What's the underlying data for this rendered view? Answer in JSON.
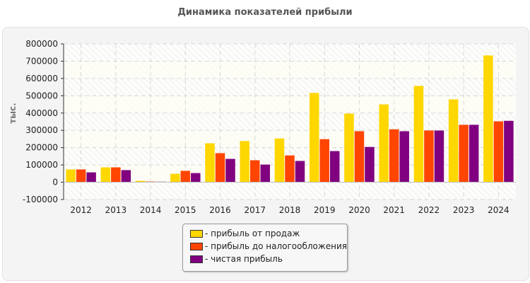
{
  "chart_data": {
    "type": "bar",
    "title": "Динамика показателей прибыли",
    "ylabel": "тыс.",
    "xlabel": "",
    "ylim": [
      -100000,
      800000
    ],
    "yticks": [
      "-100000",
      "0",
      "100000",
      "200000",
      "300000",
      "400000",
      "500000",
      "600000",
      "700000",
      "800000"
    ],
    "grid": true,
    "legend_position": "bottom",
    "categories": [
      "2012",
      "2013",
      "2014",
      "2015",
      "2016",
      "2017",
      "2018",
      "2019",
      "2020",
      "2021",
      "2022",
      "2023",
      "2024"
    ],
    "series": [
      {
        "name": "- прибыль от продаж",
        "color": "#FFD700",
        "values": [
          74000,
          86000,
          8000,
          49000,
          225000,
          238000,
          253000,
          516000,
          397000,
          450000,
          557000,
          479000,
          733000
        ]
      },
      {
        "name": "- прибыль до налогообложения",
        "color": "#FF4500",
        "values": [
          74000,
          86000,
          4000,
          66000,
          168000,
          127000,
          155000,
          249000,
          295000,
          306000,
          299000,
          332000,
          352000
        ]
      },
      {
        "name": "- чистая прибыль",
        "color": "#800080",
        "values": [
          57000,
          70000,
          3000,
          53000,
          135000,
          102000,
          123000,
          180000,
          204000,
          295000,
          299000,
          332000,
          355000
        ]
      }
    ]
  }
}
